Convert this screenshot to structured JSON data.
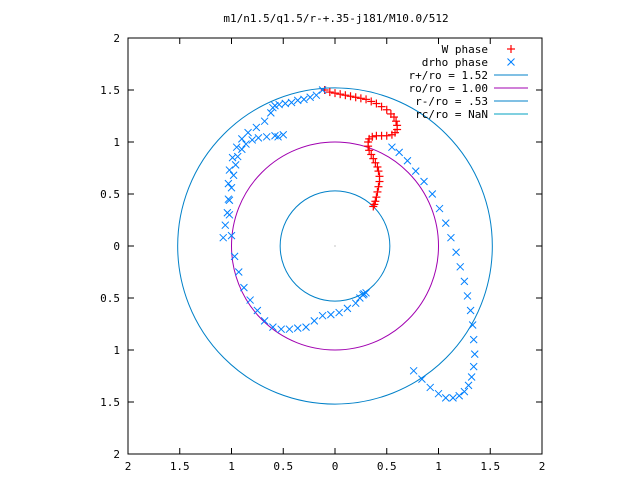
{
  "chart_data": {
    "type": "scatter",
    "title": "m1/n1.5/q1.5/r-+.35-j181/M10.0/512",
    "xlim": [
      -2,
      2
    ],
    "ylim": [
      -2,
      2
    ],
    "x_ticks": [
      -2,
      -1.5,
      -1,
      -0.5,
      0,
      0.5,
      1,
      1.5,
      2
    ],
    "x_tick_labels": [
      "2",
      "1.5",
      "1",
      "0.5",
      "0",
      "0.5",
      "1",
      "1.5",
      "2"
    ],
    "y_ticks": [
      2,
      1.5,
      1,
      0.5,
      0,
      -0.5,
      -1,
      -1.5,
      -2
    ],
    "y_tick_labels": [
      "2",
      "1.5",
      "1",
      "0.5",
      "0",
      "0.5",
      "1",
      "1.5",
      "2"
    ],
    "grid": false,
    "legend_position": "top-right",
    "circles": [
      {
        "name": "r+/ro = 1.52",
        "radius": 1.52,
        "color": "#0080c8"
      },
      {
        "name": "ro/ro = 1.00",
        "radius": 1.0,
        "color": "#a000b0"
      },
      {
        "name": "r-/ro = .53",
        "radius": 0.53,
        "color": "#0080c8"
      },
      {
        "name": "rc/ro = NaN",
        "radius": null,
        "color": "#00a0c0"
      }
    ],
    "series": [
      {
        "name": "W phase",
        "marker": "+",
        "color": "#ff0000",
        "x": [
          -0.1,
          -0.05,
          0.0,
          0.05,
          0.1,
          0.15,
          0.2,
          0.25,
          0.3,
          0.35,
          0.4,
          0.45,
          0.5,
          0.54,
          0.57,
          0.59,
          0.6,
          0.6,
          0.58,
          0.55,
          0.5,
          0.45,
          0.4,
          0.36,
          0.33,
          0.32,
          0.32,
          0.33,
          0.35,
          0.37,
          0.39,
          0.41,
          0.42,
          0.43,
          0.43,
          0.42,
          0.41,
          0.4,
          0.39,
          0.38,
          0.37
        ],
        "y": [
          1.5,
          1.48,
          1.47,
          1.46,
          1.45,
          1.44,
          1.43,
          1.42,
          1.41,
          1.39,
          1.37,
          1.34,
          1.31,
          1.27,
          1.24,
          1.2,
          1.16,
          1.12,
          1.09,
          1.07,
          1.06,
          1.06,
          1.06,
          1.05,
          1.03,
          1.0,
          0.96,
          0.92,
          0.88,
          0.84,
          0.8,
          0.76,
          0.72,
          0.67,
          0.62,
          0.57,
          0.52,
          0.47,
          0.43,
          0.4,
          0.38
        ]
      },
      {
        "name": "drho phase",
        "marker": "x",
        "color": "#0080ff",
        "x": [
          -0.12,
          -0.18,
          -0.24,
          -0.3,
          -0.36,
          -0.42,
          -0.48,
          -0.54,
          -0.58,
          -0.6,
          -0.62,
          -0.68,
          -0.76,
          -0.84,
          -0.9,
          -0.95,
          -0.99,
          -1.02,
          -1.03,
          -1.03,
          -1.02,
          -1.0,
          -0.97,
          -0.93,
          -0.88,
          -0.82,
          -0.75,
          -0.68,
          -0.6,
          -0.52,
          -0.44,
          -0.36,
          -0.28,
          -0.2,
          -0.12,
          -0.04,
          0.04,
          0.12,
          0.2,
          0.24,
          0.27,
          0.28,
          0.3,
          0.55,
          0.62,
          0.7,
          0.78,
          0.86,
          0.94,
          1.01,
          1.07,
          1.12,
          1.17,
          1.21,
          1.25,
          1.28,
          1.31,
          1.33,
          1.34,
          1.35,
          1.34,
          1.32,
          1.29,
          1.25,
          1.2,
          1.14,
          1.07,
          1.0,
          0.92,
          0.84,
          0.76,
          -0.55,
          -0.5,
          -0.58,
          -0.66,
          -0.74,
          -0.8,
          -0.86,
          -0.9,
          -0.94,
          -0.96,
          -0.98,
          -1.0,
          -1.02,
          -1.04,
          -1.06,
          -1.08
        ],
        "y": [
          1.5,
          1.45,
          1.43,
          1.41,
          1.4,
          1.38,
          1.37,
          1.36,
          1.35,
          1.33,
          1.28,
          1.2,
          1.14,
          1.09,
          1.03,
          0.95,
          0.85,
          0.73,
          0.6,
          0.45,
          0.3,
          0.1,
          -0.1,
          -0.25,
          -0.4,
          -0.52,
          -0.62,
          -0.72,
          -0.78,
          -0.8,
          -0.8,
          -0.79,
          -0.78,
          -0.72,
          -0.67,
          -0.66,
          -0.64,
          -0.6,
          -0.55,
          -0.5,
          -0.47,
          -0.46,
          -0.45,
          0.95,
          0.9,
          0.82,
          0.72,
          0.62,
          0.5,
          0.36,
          0.22,
          0.08,
          -0.06,
          -0.2,
          -0.34,
          -0.48,
          -0.62,
          -0.76,
          -0.9,
          -1.04,
          -1.16,
          -1.26,
          -1.34,
          -1.4,
          -1.44,
          -1.46,
          -1.46,
          -1.42,
          -1.36,
          -1.28,
          -1.2,
          1.05,
          1.07,
          1.06,
          1.05,
          1.04,
          1.02,
          0.98,
          0.93,
          0.86,
          0.78,
          0.68,
          0.56,
          0.44,
          0.32,
          0.2,
          0.08
        ]
      }
    ],
    "center_point": {
      "x": 0,
      "y": 0
    }
  }
}
